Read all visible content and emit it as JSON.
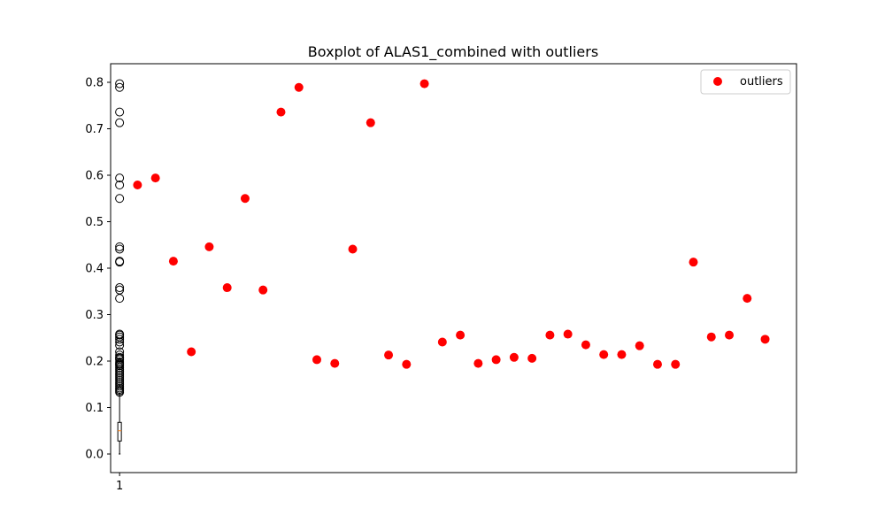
{
  "chart_data": {
    "type": "scatter",
    "title": "Boxplot of ALAS1_combined with outliers",
    "xlabel": "",
    "ylabel": "",
    "ylim": [
      -0.04,
      0.84
    ],
    "y_ticks": [
      0.0,
      0.1,
      0.2,
      0.3,
      0.4,
      0.5,
      0.6,
      0.7,
      0.8
    ],
    "x_tick_labels": [
      "1"
    ],
    "grid": false,
    "legend_position": "top-right",
    "boxplot": {
      "position": 1,
      "min": 0.0,
      "q1": 0.028,
      "median": 0.05,
      "q3": 0.068,
      "max": 0.13,
      "box_color": "#000000",
      "median_color": "#ff7f0e",
      "flier_values": [
        0.797,
        0.789,
        0.736,
        0.713,
        0.594,
        0.579,
        0.55,
        0.446,
        0.441,
        0.415,
        0.413,
        0.358,
        0.353,
        0.335,
        0.258,
        0.256,
        0.252,
        0.247,
        0.241,
        0.234,
        0.22,
        0.213,
        0.208,
        0.206,
        0.203,
        0.198,
        0.195,
        0.193,
        0.19,
        0.186,
        0.182,
        0.178,
        0.174,
        0.17,
        0.166,
        0.162,
        0.158,
        0.154,
        0.15,
        0.146,
        0.142,
        0.139,
        0.136,
        0.133
      ]
    },
    "series": [
      {
        "name": "outliers",
        "color": "#ff0000",
        "points": [
          {
            "x": 1.2,
            "y": 0.579
          },
          {
            "x": 1.4,
            "y": 0.594
          },
          {
            "x": 1.6,
            "y": 0.415
          },
          {
            "x": 1.8,
            "y": 0.22
          },
          {
            "x": 2.0,
            "y": 0.446
          },
          {
            "x": 2.2,
            "y": 0.358
          },
          {
            "x": 2.4,
            "y": 0.55
          },
          {
            "x": 2.6,
            "y": 0.353
          },
          {
            "x": 2.8,
            "y": 0.736
          },
          {
            "x": 3.0,
            "y": 0.789
          },
          {
            "x": 3.2,
            "y": 0.203
          },
          {
            "x": 3.4,
            "y": 0.195
          },
          {
            "x": 3.6,
            "y": 0.441
          },
          {
            "x": 3.8,
            "y": 0.713
          },
          {
            "x": 4.0,
            "y": 0.213
          },
          {
            "x": 4.2,
            "y": 0.193
          },
          {
            "x": 4.4,
            "y": 0.797
          },
          {
            "x": 4.6,
            "y": 0.241
          },
          {
            "x": 4.8,
            "y": 0.256
          },
          {
            "x": 5.0,
            "y": 0.195
          },
          {
            "x": 5.2,
            "y": 0.203
          },
          {
            "x": 5.4,
            "y": 0.208
          },
          {
            "x": 5.6,
            "y": 0.206
          },
          {
            "x": 5.8,
            "y": 0.256
          },
          {
            "x": 6.0,
            "y": 0.258
          },
          {
            "x": 6.2,
            "y": 0.235
          },
          {
            "x": 6.4,
            "y": 0.214
          },
          {
            "x": 6.6,
            "y": 0.214
          },
          {
            "x": 6.8,
            "y": 0.233
          },
          {
            "x": 7.0,
            "y": 0.193
          },
          {
            "x": 7.2,
            "y": 0.193
          },
          {
            "x": 7.4,
            "y": 0.413
          },
          {
            "x": 7.6,
            "y": 0.252
          },
          {
            "x": 7.8,
            "y": 0.256
          },
          {
            "x": 8.0,
            "y": 0.335
          },
          {
            "x": 8.2,
            "y": 0.247
          }
        ]
      }
    ],
    "xlim": [
      0.9,
      8.55
    ]
  }
}
